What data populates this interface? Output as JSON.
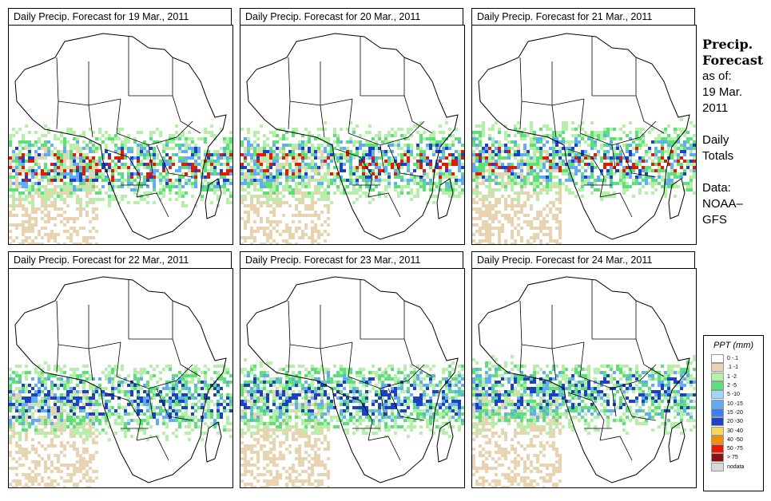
{
  "panels": [
    {
      "title": "Daily Precip. Forecast for  19 Mar., 2011"
    },
    {
      "title": "Daily Precip. Forecast for  20 Mar., 2011"
    },
    {
      "title": "Daily Precip. Forecast for  21 Mar., 2011"
    },
    {
      "title": "Daily Precip. Forecast for  22 Mar., 2011"
    },
    {
      "title": "Daily Precip. Forecast for  23 Mar., 2011"
    },
    {
      "title": "Daily Precip. Forecast for  24 Mar., 2011"
    }
  ],
  "sidebar": {
    "title_line1": "Precip.",
    "title_line2": "Forecast",
    "asof_label": "as of:",
    "asof_date1": "19 Mar.",
    "asof_date2": "2011",
    "totals1": "Daily",
    "totals2": "Totals",
    "data1": "Data:",
    "data2": "NOAA–",
    "data3": "GFS"
  },
  "legend": {
    "title": "PPT (mm)",
    "items": [
      {
        "label": "0 -.1",
        "color": "#ffffff"
      },
      {
        "label": ".1 -1",
        "color": "#e8d4b0"
      },
      {
        "label": "1 -2",
        "color": "#b4f0a8"
      },
      {
        "label": "2 -5",
        "color": "#5ce07a"
      },
      {
        "label": "5 -10",
        "color": "#9ad8f8"
      },
      {
        "label": "10 -15",
        "color": "#60acf8"
      },
      {
        "label": "15 -20",
        "color": "#3c80f0"
      },
      {
        "label": "20 -30",
        "color": "#1c40c8"
      },
      {
        "label": "30 -40",
        "color": "#f8d858"
      },
      {
        "label": "40 -50",
        "color": "#f88c00"
      },
      {
        "label": "50 -75",
        "color": "#e81800"
      },
      {
        "label": "> 75",
        "color": "#8c1010"
      },
      {
        "label": "nodata",
        "color": "#d8d8d8"
      }
    ]
  }
}
